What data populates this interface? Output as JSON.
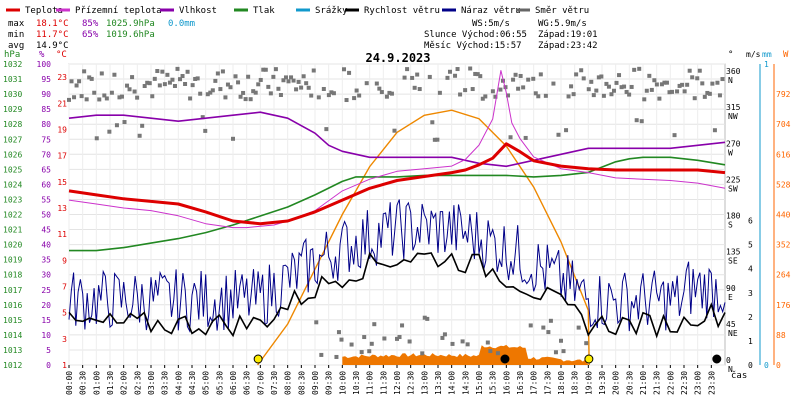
{
  "chart_data": {
    "type": "line",
    "title": "24.9.2023",
    "x_start_hour": 0,
    "x_end_hour": 24,
    "x_tick_labels": [
      "00:00",
      "00:30",
      "01:00",
      "01:30",
      "02:00",
      "02:30",
      "03:00",
      "03:30",
      "04:00",
      "04:30",
      "05:00",
      "05:30",
      "06:00",
      "06:30",
      "07:00",
      "07:30",
      "08:00",
      "08:30",
      "09:00",
      "09:30",
      "10:00",
      "10:30",
      "11:00",
      "11:30",
      "12:00",
      "12:30",
      "13:00",
      "13:30",
      "14:00",
      "14:30",
      "15:00",
      "15:30",
      "16:00",
      "16:30",
      "17:00",
      "17:30",
      "18:00",
      "18:30",
      "19:00",
      "19:30",
      "20:00",
      "20:30",
      "21:00",
      "21:30",
      "22:00",
      "22:30",
      "23:00",
      "23:30"
    ],
    "x_unit_label": "čas",
    "legend": [
      {
        "name": "Teplota",
        "color": "#dd0000"
      },
      {
        "name": "Přízemní teplota",
        "color": "#cc33cc"
      },
      {
        "name": "Vlhkost",
        "color": "#8800aa"
      },
      {
        "name": "Tlak",
        "color": "#228822"
      },
      {
        "name": "Srážky",
        "color": "#1199cc"
      },
      {
        "name": "Rychlost větru",
        "color": "#000000"
      },
      {
        "name": "Náraz větru",
        "color": "#000088"
      },
      {
        "name": "Směr větru",
        "color": "#666666"
      }
    ],
    "stats": {
      "max": {
        "label": "max",
        "temp": "18.1°C",
        "hum": "85%",
        "press": "1025.9hPa",
        "rain": "0.0mm"
      },
      "min": {
        "label": "min",
        "temp": "11.7°C",
        "hum": "65%",
        "press": "1019.6hPa"
      },
      "avg": {
        "label": "avg",
        "temp": "14.9°C"
      }
    },
    "info": {
      "ws": "WS:5m/s",
      "wg": "WG:5.9m/s",
      "sun": "Slunce Východ:06:55",
      "sun_set": "Západ:19:01",
      "moon": "Měsíc Východ:15:57",
      "moon_set": "Západ:23:42"
    },
    "axes": {
      "hpa": {
        "label": "hPa",
        "min": 1012,
        "max": 1032,
        "ticks": [
          1012,
          1013,
          1014,
          1015,
          1016,
          1017,
          1018,
          1019,
          1020,
          1021,
          1022,
          1023,
          1024,
          1025,
          1026,
          1027,
          1028,
          1029,
          1030,
          1031,
          1032
        ],
        "color": "#228822"
      },
      "hum": {
        "label": "%",
        "min": 0,
        "max": 100,
        "ticks": [
          0,
          5,
          10,
          15,
          20,
          25,
          30,
          35,
          40,
          45,
          50,
          55,
          60,
          65,
          70,
          75,
          80,
          85,
          90,
          95,
          100
        ],
        "color": "#8800aa"
      },
      "temp": {
        "label": "°C",
        "min": 1,
        "max": 24,
        "ticks": [
          1,
          3,
          5,
          7,
          9,
          11,
          13,
          15,
          17,
          19,
          21,
          23
        ],
        "color": "#dd0000"
      },
      "dir": {
        "label": "°",
        "min": 0,
        "max": 375,
        "ticks": [
          {
            "v": 0,
            "t": "0",
            "c": "N"
          },
          {
            "v": 45,
            "t": "45",
            "c": "NE"
          },
          {
            "v": 90,
            "t": "90",
            "c": "E"
          },
          {
            "v": 135,
            "t": "135",
            "c": "SE"
          },
          {
            "v": 180,
            "t": "180",
            "c": "S"
          },
          {
            "v": 225,
            "t": "225",
            "c": "SW"
          },
          {
            "v": 270,
            "t": "270",
            "c": "W"
          },
          {
            "v": 315,
            "t": "315",
            "c": "NW"
          },
          {
            "v": 360,
            "t": "360",
            "c": "N"
          }
        ]
      },
      "speed": {
        "label": "m/s",
        "min": 0,
        "max": 12.5,
        "ticks": [
          0,
          1,
          2,
          3,
          4,
          5,
          6
        ]
      },
      "rain": {
        "label": "mm",
        "max_tick": "1",
        "zero_tick": "0",
        "color": "#1199cc"
      },
      "solar": {
        "label": "W",
        "min": 0,
        "max": 880,
        "ticks": [
          0,
          88,
          176,
          264,
          352,
          440,
          528,
          616,
          704,
          792
        ],
        "color": "#ff6600"
      }
    },
    "series": {
      "temperature": {
        "x": [
          0,
          1,
          2,
          3,
          4,
          5,
          6,
          6.5,
          7,
          7.5,
          8,
          9,
          10,
          11,
          12,
          13,
          14,
          14.5,
          15,
          15.5,
          16,
          16.5,
          17,
          18,
          19,
          20,
          21,
          22,
          23,
          24
        ],
        "y": [
          14.3,
          14,
          13.7,
          13.5,
          13.3,
          12.7,
          12,
          11.9,
          11.8,
          11.9,
          12,
          12.7,
          13.6,
          14.5,
          15.1,
          15.4,
          15.7,
          15.9,
          16.3,
          16.8,
          17.9,
          17.3,
          16.6,
          16.2,
          16.0,
          15.9,
          15.9,
          15.9,
          15.9,
          15.7
        ]
      },
      "ground_temperature": {
        "x": [
          0,
          1,
          2,
          3,
          4,
          5,
          6,
          6.5,
          7,
          7.5,
          8,
          9,
          10,
          11,
          12,
          13,
          14,
          14.5,
          15,
          15.5,
          15.8,
          16,
          16.2,
          16.5,
          17,
          18,
          19,
          20,
          21,
          22,
          23,
          24
        ],
        "y": [
          13.6,
          13.3,
          13.0,
          12.8,
          12.4,
          11.8,
          11.5,
          11.5,
          11.6,
          11.7,
          12,
          12.8,
          14.3,
          15.2,
          15.8,
          16.0,
          16.2,
          16.7,
          17.8,
          19.8,
          23.5,
          21.8,
          19.5,
          18.3,
          16.9,
          16.0,
          15.7,
          15.3,
          15.2,
          15.1,
          14.9,
          14.5
        ]
      },
      "humidity": {
        "x": [
          0,
          1,
          2,
          3,
          4,
          5,
          6,
          7,
          8,
          9,
          9.5,
          10,
          11,
          12,
          13,
          14,
          14.5,
          15,
          16,
          17,
          18,
          19,
          20,
          21,
          22,
          23,
          24
        ],
        "y": [
          82,
          83,
          83,
          82,
          81,
          82,
          83,
          84,
          82,
          77,
          73,
          71,
          69,
          69,
          69,
          69,
          68,
          67,
          66,
          68,
          70,
          72,
          72,
          72,
          72,
          73,
          74
        ]
      },
      "pressure": {
        "x": [
          0,
          1,
          2,
          3,
          4,
          5,
          6,
          7,
          8,
          9,
          10,
          10.5,
          11,
          12,
          13,
          14,
          15,
          16,
          17,
          18,
          19,
          20,
          20.5,
          21,
          22,
          23,
          24
        ],
        "y": [
          1019.6,
          1019.6,
          1019.8,
          1020.1,
          1020.4,
          1020.8,
          1021.3,
          1021.9,
          1022.5,
          1023.3,
          1024.2,
          1024.5,
          1024.5,
          1024.5,
          1024.6,
          1024.6,
          1024.6,
          1024.6,
          1024.5,
          1024.6,
          1024.8,
          1025.5,
          1025.7,
          1025.8,
          1025.8,
          1025.6,
          1025.3
        ]
      },
      "solar_radiation": {
        "x": [
          6.9,
          8,
          9,
          10,
          11,
          12,
          13,
          14,
          15,
          16,
          17,
          18,
          19,
          19.03
        ],
        "y": [
          0,
          120,
          280,
          440,
          580,
          680,
          730,
          745,
          720,
          640,
          520,
          360,
          160,
          0
        ]
      },
      "rain": {
        "total": "0.0mm"
      }
    }
  }
}
